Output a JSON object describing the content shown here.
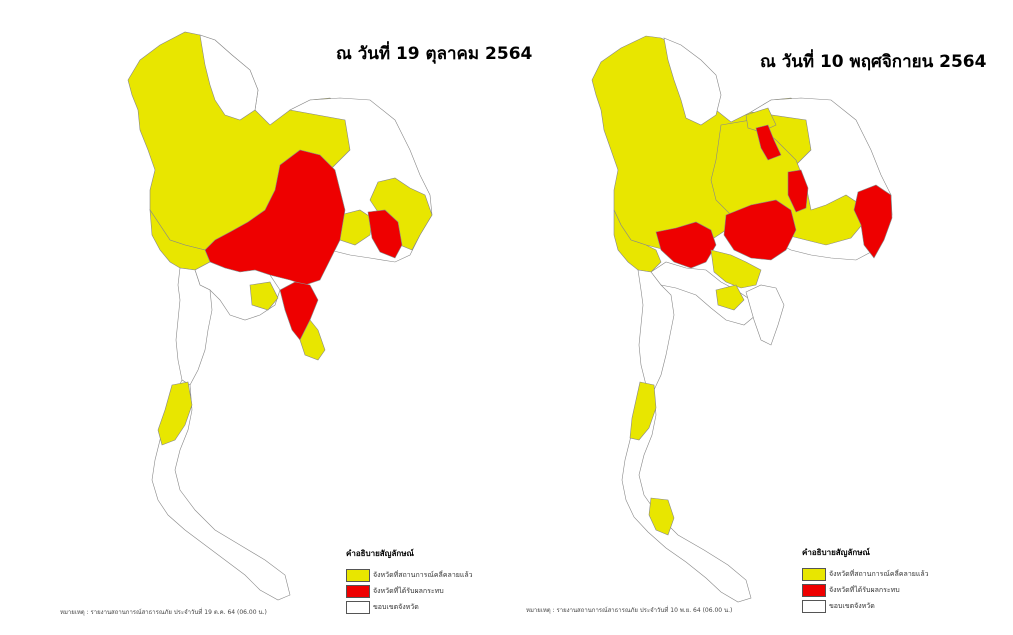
{
  "colors": {
    "affected": "#e8e600",
    "spreading": "#ee0000",
    "no_situation": "#ffffff",
    "border": "#888888"
  },
  "maps": [
    {
      "title": "ณ วันที่ 19 ตุลาคม 2564",
      "legend": {
        "title": "คำอธิบายสัญลักษณ์",
        "items": [
          {
            "label": "จังหวัดที่สถานการณ์คลี่คลายแล้ว",
            "color": "#e8e600"
          },
          {
            "label": "จังหวัดที่ได้รับผลกระทบ",
            "color": "#ee0000"
          },
          {
            "label": "ขอบเขตจังหวัด",
            "color": "#ffffff"
          }
        ]
      },
      "source": "หมายเหตุ : รายงานสถานการณ์สาธารณภัย ประจำวันที่ 19 ต.ค. 64 (06.00 น.)"
    },
    {
      "title": "ณ วันที่ 10 พฤศจิกายน 2564",
      "legend": {
        "title": "คำอธิบายสัญลักษณ์",
        "items": [
          {
            "label": "จังหวัดที่สถานการณ์คลี่คลายแล้ว",
            "color": "#e8e600"
          },
          {
            "label": "จังหวัดที่ได้รับผลกระทบ",
            "color": "#ee0000"
          },
          {
            "label": "ขอบเขตจังหวัด",
            "color": "#ffffff"
          }
        ]
      },
      "source": "หมายเหตุ : รายงานสถานการณ์สาธารณภัย ประจำวันที่ 10 พ.ย. 64 (06.00 น.)"
    }
  ]
}
